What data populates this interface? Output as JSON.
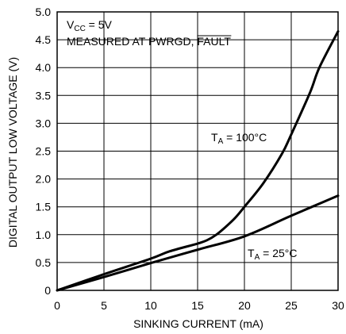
{
  "chart_data": {
    "type": "line",
    "title": "",
    "xlabel": "SINKING CURRENT (mA)",
    "ylabel": "DIGITAL OUTPUT LOW VOLTAGE (V)",
    "xlim": [
      0,
      30
    ],
    "ylim": [
      0,
      5.0
    ],
    "grid": true,
    "x_ticks": [
      "0",
      "5",
      "10",
      "15",
      "20",
      "25",
      "30"
    ],
    "y_ticks": [
      "0",
      "0.5",
      "1.0",
      "1.5",
      "2.0",
      "2.5",
      "3.0",
      "3.5",
      "4.0",
      "4.5",
      "5.0"
    ],
    "annotations": {
      "vcc_main": "V",
      "vcc_sub": "CC",
      "vcc_rest": " = 5V",
      "measured_prefix": "MEASURED AT PWRGD, ",
      "measured_fault": "FAULT",
      "ta100_main": "T",
      "ta100_sub": "A",
      "ta100_rest": " = 100°C",
      "ta25_main": "T",
      "ta25_sub": "A",
      "ta25_rest": " = 25°C"
    },
    "series": [
      {
        "x": [
          0,
          5,
          10,
          12,
          15,
          16,
          17,
          18,
          19,
          20,
          22,
          24,
          25,
          27,
          28,
          30
        ],
        "y": [
          0,
          0.29,
          0.57,
          0.7,
          0.84,
          0.9,
          1.0,
          1.14,
          1.3,
          1.5,
          1.92,
          2.45,
          2.8,
          3.55,
          4.0,
          4.65
        ]
      },
      {
        "x": [
          0,
          5,
          10,
          15,
          20,
          25,
          30
        ],
        "y": [
          0,
          0.24,
          0.49,
          0.73,
          0.97,
          1.34,
          1.7
        ]
      }
    ]
  }
}
